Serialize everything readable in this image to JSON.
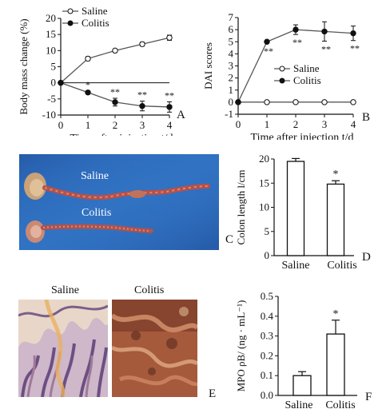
{
  "panels": {
    "A": "A",
    "B": "B",
    "C": "C",
    "D": "D",
    "E": "E",
    "F": "F"
  },
  "photo_labels": {
    "saline": "Saline",
    "colitis": "Colitis"
  },
  "hist_labels": {
    "saline": "Saline",
    "colitis": "Colitis"
  },
  "colors": {
    "line": "#555555",
    "marker_open": "#ffffff",
    "marker_filled": "#111111",
    "colon_bg": "#2f6fc0",
    "colon_tissue": "#b8504a",
    "hist_saline_bg": "#e8d7c8",
    "hist_saline_tissue": "#7b5f8a",
    "hist_colitis": "#a55a3c"
  },
  "chart_data": [
    {
      "id": "A",
      "type": "line",
      "x": [
        0,
        1,
        2,
        3,
        4
      ],
      "xlabel": "Time after injection t/d",
      "ylabel": "Body mass change (%)",
      "xlim": [
        0,
        4
      ],
      "ylim": [
        -10,
        20
      ],
      "xticks": [
        "0",
        "1",
        "2",
        "3",
        "4"
      ],
      "yticks": [
        "-10",
        "-5",
        "0",
        "5",
        "10",
        "15",
        "20"
      ],
      "yticks_values": [
        -10,
        -5,
        0,
        5,
        10,
        15,
        20
      ],
      "legend_position": "top-left",
      "series": [
        {
          "name": "Saline",
          "marker": "open",
          "values": [
            0,
            7.5,
            10,
            12,
            14
          ],
          "err": [
            0,
            0.6,
            0.5,
            0.6,
            0.8
          ]
        },
        {
          "name": "Colitis",
          "marker": "filled",
          "values": [
            0,
            -3,
            -6,
            -7.2,
            -7.5
          ],
          "err": [
            0,
            0.5,
            1.2,
            1.5,
            1.6
          ]
        }
      ],
      "annotations": [
        {
          "x": 1,
          "text": "*"
        },
        {
          "x": 2,
          "text": "**"
        },
        {
          "x": 3,
          "text": "**"
        },
        {
          "x": 4,
          "text": "**"
        }
      ]
    },
    {
      "id": "B",
      "type": "line",
      "x": [
        0,
        1,
        2,
        3,
        4
      ],
      "xlabel": "Time after injection t/d",
      "ylabel": "DAI scores",
      "xlim": [
        0,
        4
      ],
      "ylim": [
        -1,
        7
      ],
      "xticks": [
        "0",
        "1",
        "2",
        "3",
        "4"
      ],
      "yticks": [
        "-1",
        "0",
        "1",
        "2",
        "3",
        "4",
        "5",
        "6",
        "7"
      ],
      "yticks_values": [
        -1,
        0,
        1,
        2,
        3,
        4,
        5,
        6,
        7
      ],
      "legend_position": "center-right",
      "series": [
        {
          "name": "Saline",
          "marker": "open",
          "values": [
            0,
            0,
            0,
            0,
            0
          ],
          "err": [
            0,
            0,
            0,
            0,
            0
          ]
        },
        {
          "name": "Colitis",
          "marker": "filled",
          "values": [
            0,
            5,
            6,
            5.85,
            5.7
          ],
          "err": [
            0,
            0.1,
            0.4,
            0.8,
            0.6
          ]
        }
      ],
      "annotations": [
        {
          "x": 1,
          "text": "**"
        },
        {
          "x": 2,
          "text": "**"
        },
        {
          "x": 3,
          "text": "**"
        },
        {
          "x": 4,
          "text": "**"
        }
      ]
    },
    {
      "id": "D",
      "type": "bar",
      "categories": [
        "Saline",
        "Colitis"
      ],
      "values": [
        19.5,
        14.8
      ],
      "err": [
        0.6,
        0.7
      ],
      "ylabel": "Colon length l/cm",
      "ylim": [
        0,
        20
      ],
      "yticks": [
        "0",
        "5",
        "10",
        "15",
        "20"
      ],
      "yticks_values": [
        0,
        5,
        10,
        15,
        20
      ],
      "annotations": [
        {
          "category": "Colitis",
          "text": "*"
        }
      ]
    },
    {
      "id": "F",
      "type": "bar",
      "categories": [
        "Saline",
        "Colitis"
      ],
      "values": [
        0.1,
        0.31
      ],
      "err": [
        0.02,
        0.07
      ],
      "ylabel": "MPO ρB/ (ng · mL⁻¹)",
      "ylim": [
        0,
        0.5
      ],
      "yticks": [
        "0.0",
        "0.1",
        "0.2",
        "0.3",
        "0.4",
        "0.5"
      ],
      "yticks_values": [
        0,
        0.1,
        0.2,
        0.3,
        0.4,
        0.5
      ],
      "annotations": [
        {
          "category": "Colitis",
          "text": "*"
        }
      ]
    }
  ]
}
